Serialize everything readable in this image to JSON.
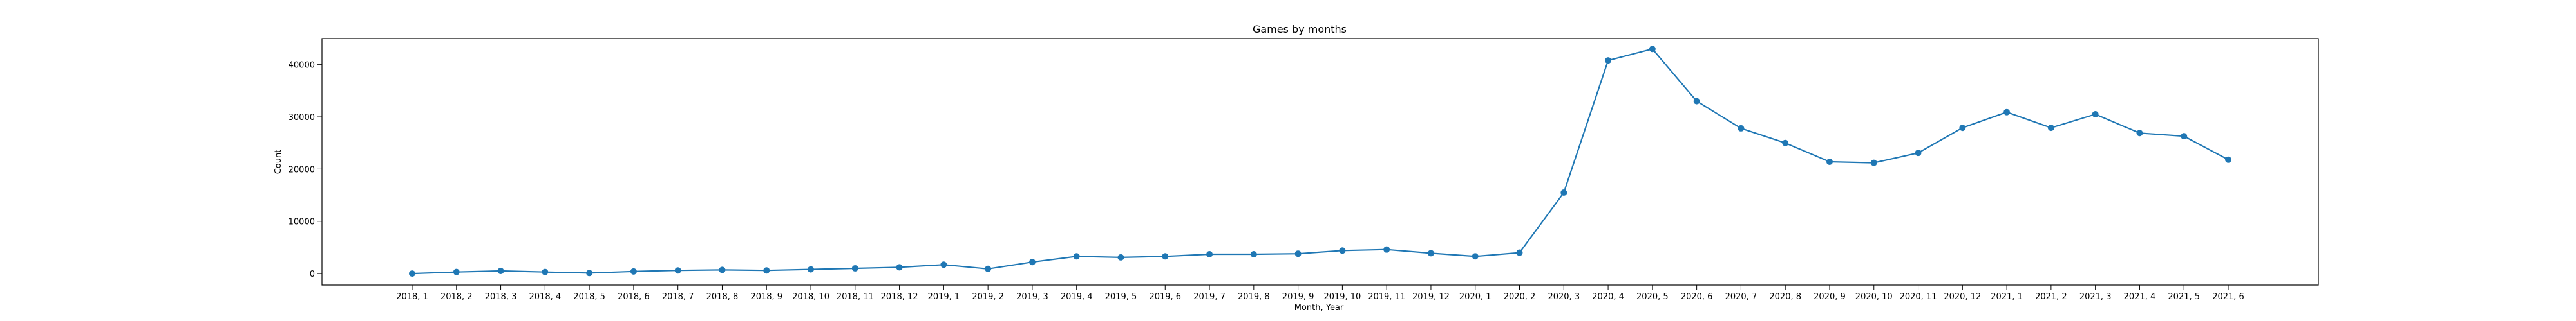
{
  "chart_data": {
    "type": "line",
    "title": "Games by months",
    "xlabel": "Month, Year",
    "ylabel": "Count",
    "ylim": [
      -2200,
      45000
    ],
    "yticks": [
      0,
      10000,
      20000,
      30000,
      40000
    ],
    "grid": false,
    "marker": "circle",
    "color": "#1f77b4",
    "categories": [
      "2018, 1",
      "2018, 2",
      "2018, 3",
      "2018, 4",
      "2018, 5",
      "2018, 6",
      "2018, 7",
      "2018, 8",
      "2018, 9",
      "2018, 10",
      "2018, 11",
      "2018, 12",
      "2019, 1",
      "2019, 2",
      "2019, 3",
      "2019, 4",
      "2019, 5",
      "2019, 6",
      "2019, 7",
      "2019, 8",
      "2019, 9",
      "2019, 10",
      "2019, 11",
      "2019, 12",
      "2020, 1",
      "2020, 2",
      "2020, 3",
      "2020, 4",
      "2020, 5",
      "2020, 6",
      "2020, 7",
      "2020, 8",
      "2020, 9",
      "2020, 10",
      "2020, 11",
      "2020, 12",
      "2021, 1",
      "2021, 2",
      "2021, 3",
      "2021, 4",
      "2021, 5",
      "2021, 6"
    ],
    "values": [
      0,
      300,
      500,
      300,
      100,
      400,
      600,
      700,
      600,
      800,
      1000,
      1200,
      1700,
      900,
      2200,
      3300,
      3100,
      3300,
      3700,
      3700,
      3800,
      4400,
      4600,
      3900,
      3300,
      4000,
      15500,
      40800,
      43000,
      33000,
      27800,
      25000,
      21400,
      21200,
      23100,
      27900,
      30900,
      27900,
      30500,
      26900,
      26300,
      21800
    ]
  }
}
